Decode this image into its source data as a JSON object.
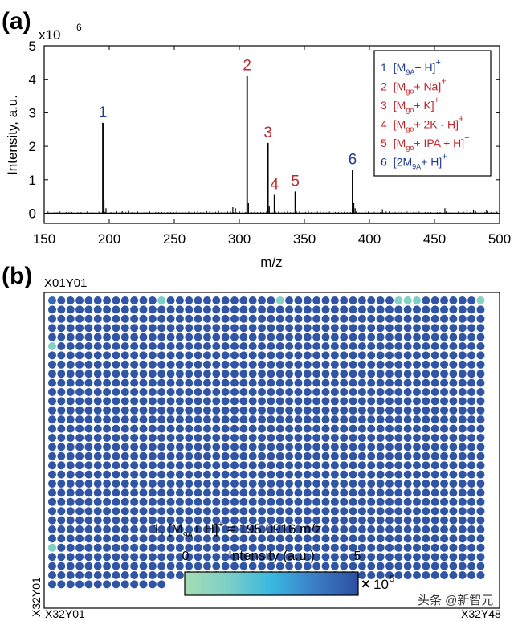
{
  "panel_a": {
    "label": "(a)",
    "exponent_base": "x10",
    "exponent_power": "6",
    "legend": [
      {
        "num": "1",
        "pre": "[M",
        "sub": "9A",
        "post": "+ H]",
        "sup": "+",
        "color": "#1f3a93"
      },
      {
        "num": "2",
        "pre": "[M",
        "sub": "go",
        "post": "+ Na]",
        "sup": "+",
        "color": "#c0272d"
      },
      {
        "num": "3",
        "pre": "[M",
        "sub": "go",
        "post": "+ K]",
        "sup": "+",
        "color": "#c0272d"
      },
      {
        "num": "4",
        "pre": "[M",
        "sub": "go",
        "post": "+ 2K - H]",
        "sup": "+",
        "color": "#c0272d"
      },
      {
        "num": "5",
        "pre": "[M",
        "sub": "go",
        "post": "+ IPA + H]",
        "sup": "+",
        "color": "#c0272d"
      },
      {
        "num": "6",
        "pre": "[2M",
        "sub": "9A",
        "post": "+ H]",
        "sup": "+",
        "color": "#1f3a93"
      }
    ]
  },
  "panel_b": {
    "label": "(b)",
    "corner_top_left": "X01Y01",
    "corner_bottom_left_vertical": "X32Y01",
    "corner_bottom_left": "X32Y01",
    "corner_bottom_right": "X32Y48",
    "formula": {
      "num": "1,",
      "pre": "[M",
      "sub": "9A",
      "post": "+ H]",
      "sup": "+",
      "rest": " = 195.0916 m/z"
    },
    "colorbar": {
      "title": "Intensity (a.u.)",
      "min_label": "0",
      "max_label": "5",
      "mult": "×",
      "exp_base": "10",
      "exp_power": "5"
    }
  },
  "watermark": "头条 @新智元",
  "chart_data": [
    {
      "type": "line",
      "title": "",
      "xlabel": "m/z",
      "ylabel": "Intensity, a.u.",
      "xlim": [
        150,
        500
      ],
      "ylim": [
        -0.3,
        5
      ],
      "x_ticks": [
        150,
        200,
        250,
        300,
        350,
        400,
        450,
        500
      ],
      "y_ticks": [
        0,
        1,
        2,
        3,
        4,
        5
      ],
      "y_scale_note": "x10^6",
      "peaks": [
        {
          "x": 195.09,
          "y": 2.7,
          "label": "1",
          "color": "#1f3a93"
        },
        {
          "x": 306.0,
          "y": 4.1,
          "label": "2",
          "color": "#c0272d"
        },
        {
          "x": 322.0,
          "y": 2.1,
          "label": "3",
          "color": "#c0272d"
        },
        {
          "x": 327.0,
          "y": 0.55,
          "label": "4",
          "color": "#c0272d"
        },
        {
          "x": 343.0,
          "y": 0.65,
          "label": "5",
          "color": "#c0272d"
        },
        {
          "x": 387.0,
          "y": 1.3,
          "label": "6",
          "color": "#1f3a93"
        }
      ],
      "minor_peaks": [
        {
          "x": 196.0,
          "y": 0.4
        },
        {
          "x": 197.5,
          "y": 0.15
        },
        {
          "x": 210.0,
          "y": 0.06
        },
        {
          "x": 295.0,
          "y": 0.18
        },
        {
          "x": 297.0,
          "y": 0.15
        },
        {
          "x": 307.0,
          "y": 0.3
        },
        {
          "x": 323.0,
          "y": 0.2
        },
        {
          "x": 388.0,
          "y": 0.3
        },
        {
          "x": 389.0,
          "y": 0.15
        },
        {
          "x": 410.0,
          "y": 0.12
        },
        {
          "x": 458.0,
          "y": 0.15
        },
        {
          "x": 475.0,
          "y": 0.12
        },
        {
          "x": 480.0,
          "y": 0.1
        },
        {
          "x": 490.0,
          "y": 0.1
        }
      ]
    },
    {
      "type": "heatmap",
      "title": "1, [M9A+ H]+ = 195.0916 m/z",
      "rows": 32,
      "cols": 48,
      "filled_spots": 1501,
      "colorbar_range": [
        0,
        500000
      ],
      "default_intensity": 500000,
      "low_spots": [
        {
          "row": 1,
          "col": 1,
          "value": 430000
        },
        {
          "row": 1,
          "col": 13,
          "value": 120000
        },
        {
          "row": 1,
          "col": 26,
          "value": 100000
        },
        {
          "row": 1,
          "col": 39,
          "value": 100000
        },
        {
          "row": 1,
          "col": 40,
          "value": 110000
        },
        {
          "row": 1,
          "col": 41,
          "value": 120000
        },
        {
          "row": 1,
          "col": 48,
          "value": 90000
        },
        {
          "row": 6,
          "col": 1,
          "value": 110000
        },
        {
          "row": 28,
          "col": 1,
          "value": 120000
        }
      ]
    }
  ],
  "colors": {
    "spot_default": "#2f55a4",
    "axis": "#000000",
    "blue_label": "#1f3a93",
    "red_label": "#c0272d"
  }
}
